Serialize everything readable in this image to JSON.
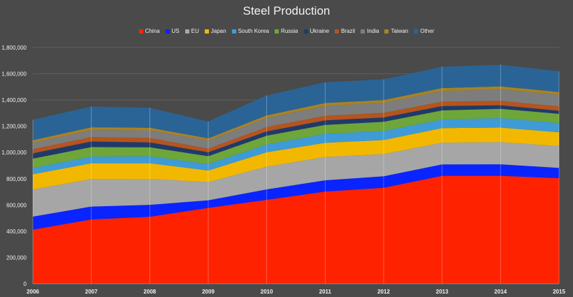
{
  "chart_data": {
    "type": "area",
    "stacked": true,
    "title": "Steel Production",
    "xlabel": "",
    "ylabel": "",
    "ylim": [
      0,
      1800000
    ],
    "y_ticks": [
      "0",
      "200,000",
      "400,000",
      "600,000",
      "800,000",
      "1,000,000",
      "1,200,000",
      "1,400,000",
      "1,600,000",
      "1,800,000"
    ],
    "grid": true,
    "legend_position": "top",
    "x": [
      "2006",
      "2007",
      "2008",
      "2009",
      "2010",
      "2011",
      "2012",
      "2013",
      "2014",
      "2015"
    ],
    "series": [
      {
        "name": "China",
        "color": "#ff2200",
        "values": [
          412000,
          490000,
          510000,
          578000,
          639000,
          702000,
          731000,
          822000,
          822000,
          804000
        ]
      },
      {
        "name": "US",
        "color": "#0a24ff",
        "values": [
          99000,
          98000,
          91000,
          58000,
          80000,
          86000,
          88000,
          87000,
          88000,
          79000
        ]
      },
      {
        "name": "EU",
        "color": "#a6a6a6",
        "values": [
          207000,
          210000,
          198000,
          139000,
          173000,
          178000,
          169000,
          166000,
          169000,
          166000
        ]
      },
      {
        "name": "Japan",
        "color": "#f2b800",
        "values": [
          116000,
          120000,
          119000,
          88000,
          110000,
          108000,
          107000,
          111000,
          111000,
          105000
        ]
      },
      {
        "name": "South Korea",
        "color": "#3e9bd6",
        "values": [
          48000,
          51000,
          53000,
          49000,
          59000,
          68000,
          69000,
          66000,
          72000,
          70000
        ]
      },
      {
        "name": "Russia",
        "color": "#6ea63a",
        "values": [
          71000,
          72000,
          69000,
          60000,
          67000,
          68000,
          70000,
          69000,
          71000,
          71000
        ]
      },
      {
        "name": "Ukraine",
        "color": "#1f3a6a",
        "values": [
          41000,
          43000,
          37000,
          30000,
          33000,
          35000,
          33000,
          33000,
          27000,
          23000
        ]
      },
      {
        "name": "Brazil",
        "color": "#b5541d",
        "values": [
          31000,
          34000,
          34000,
          27000,
          33000,
          35000,
          35000,
          34000,
          34000,
          33000
        ]
      },
      {
        "name": "India",
        "color": "#7d7d7d",
        "values": [
          49000,
          53000,
          58000,
          63000,
          69000,
          74000,
          77000,
          81000,
          87000,
          89000
        ]
      },
      {
        "name": "Taiwan",
        "color": "#a88324",
        "values": [
          20000,
          21000,
          20000,
          16000,
          20000,
          23000,
          21000,
          22000,
          23000,
          21000
        ]
      },
      {
        "name": "Other",
        "color": "#2a6496",
        "values": [
          156000,
          158000,
          152000,
          128000,
          152000,
          158000,
          157000,
          162000,
          165000,
          158000
        ]
      }
    ]
  }
}
